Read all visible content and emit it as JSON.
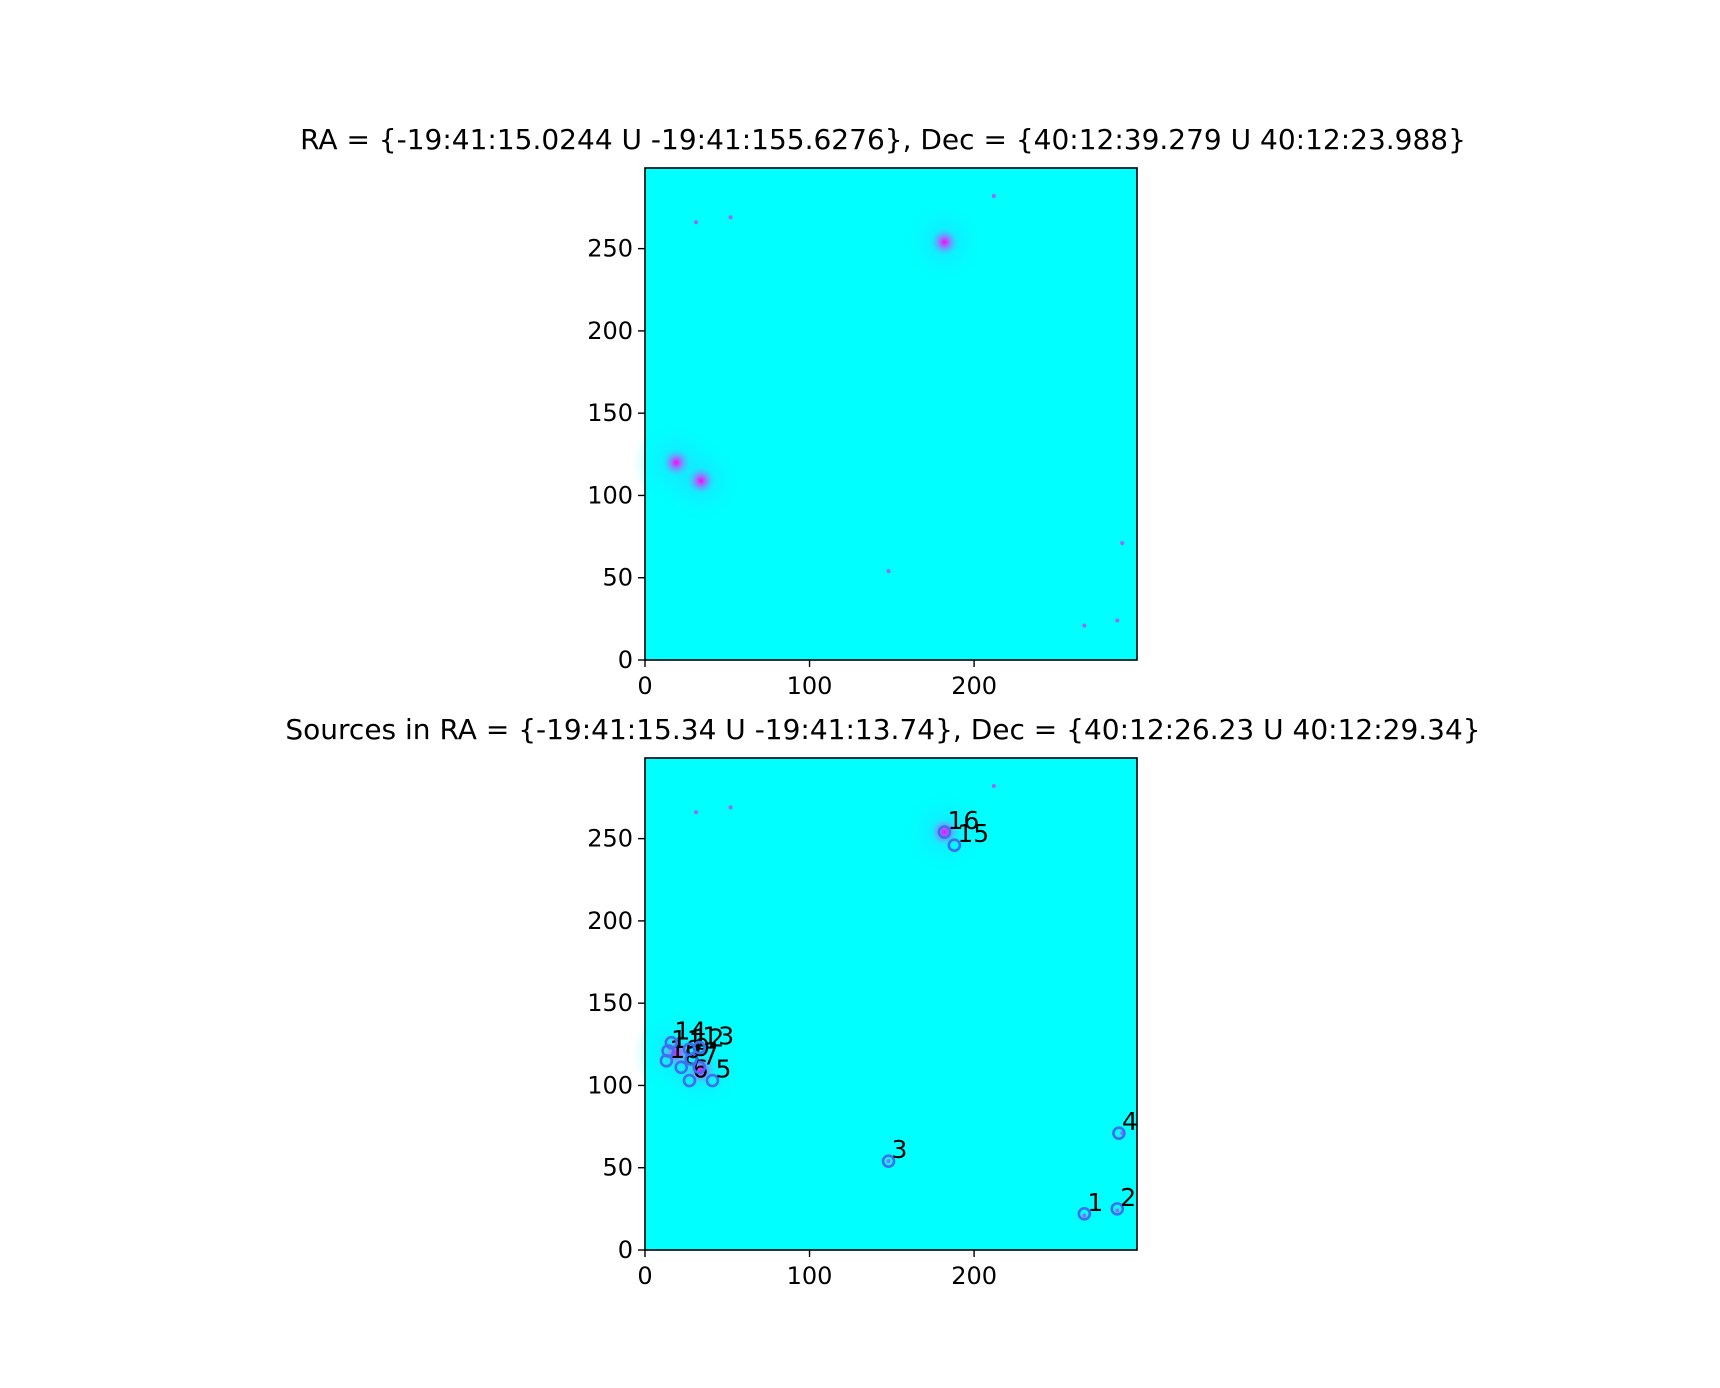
{
  "chart_data": [
    {
      "type": "image",
      "title": "RA = {-19:41:15.0244 U -19:41:155.6276}, Dec = {40:12:39.279 U 40:12:23.988}",
      "xlim": [
        0,
        299
      ],
      "ylim": [
        0,
        299
      ],
      "xticks": [
        0,
        100,
        200
      ],
      "yticks": [
        0,
        50,
        100,
        150,
        200,
        250
      ],
      "background_color": "#00ffff",
      "colormap": "cool",
      "bright_sources": [
        {
          "x": 182,
          "y": 254
        },
        {
          "x": 19,
          "y": 120
        },
        {
          "x": 34,
          "y": 109
        }
      ],
      "faint_specks": [
        {
          "x": 31,
          "y": 266
        },
        {
          "x": 52,
          "y": 269
        },
        {
          "x": 212,
          "y": 282
        },
        {
          "x": 148,
          "y": 54
        },
        {
          "x": 287,
          "y": 24
        },
        {
          "x": 267,
          "y": 21
        },
        {
          "x": 290,
          "y": 71
        }
      ]
    },
    {
      "type": "scatter",
      "title": "Sources in RA = {-19:41:15.34 U -19:41:13.74}, Dec = {40:12:26.23 U 40:12:29.34}",
      "xlim": [
        0,
        299
      ],
      "ylim": [
        0,
        299
      ],
      "xticks": [
        0,
        100,
        200
      ],
      "yticks": [
        0,
        50,
        100,
        150,
        200,
        250
      ],
      "background_color": "#00ffff",
      "marker_color": "#3d6ff0",
      "sources": [
        {
          "label": "1",
          "x": 267,
          "y": 22
        },
        {
          "label": "2",
          "x": 287,
          "y": 25
        },
        {
          "label": "3",
          "x": 148,
          "y": 54
        },
        {
          "label": "4",
          "x": 288,
          "y": 71
        },
        {
          "label": "5",
          "x": 41,
          "y": 103
        },
        {
          "label": "6",
          "x": 27,
          "y": 103
        },
        {
          "label": "7",
          "x": 33,
          "y": 111
        },
        {
          "label": "8",
          "x": 22,
          "y": 111
        },
        {
          "label": "9",
          "x": 28,
          "y": 116
        },
        {
          "label": "10",
          "x": 13,
          "y": 115
        },
        {
          "label": "11",
          "x": 14,
          "y": 121
        },
        {
          "label": "12",
          "x": 27,
          "y": 122
        },
        {
          "label": "13",
          "x": 33,
          "y": 123
        },
        {
          "label": "14",
          "x": 16,
          "y": 126
        },
        {
          "label": "15",
          "x": 188,
          "y": 246
        },
        {
          "label": "16",
          "x": 182,
          "y": 254
        }
      ]
    }
  ]
}
